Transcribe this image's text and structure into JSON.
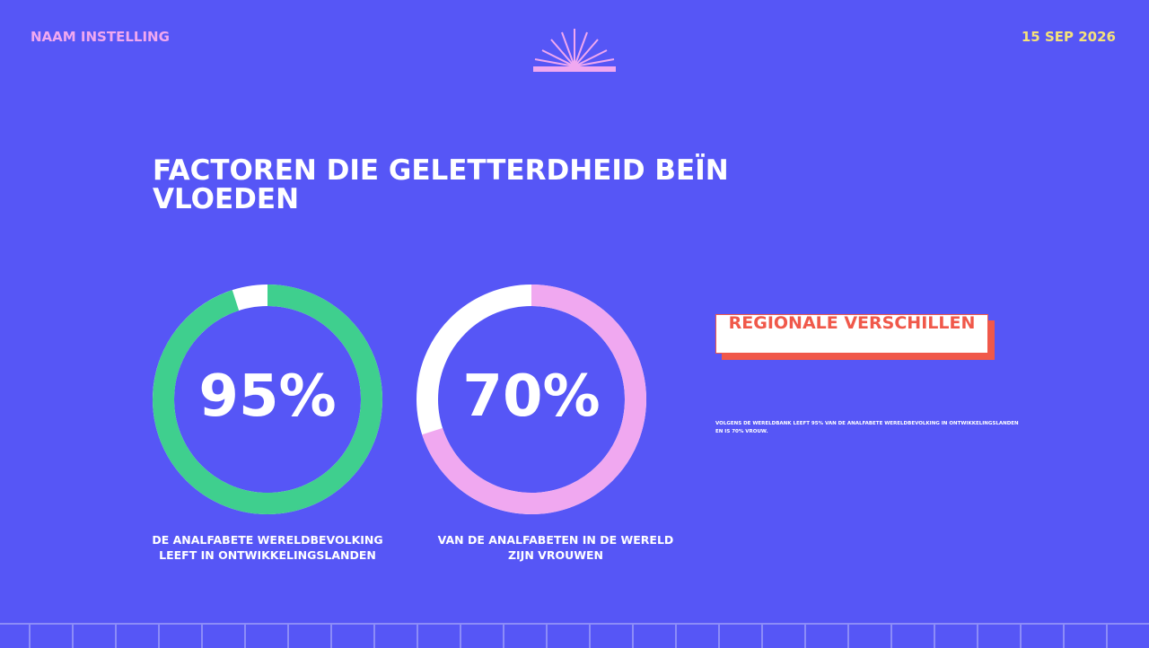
{
  "header": {
    "organization": "NAAM INSTELLING",
    "date": "15 SEP 2026",
    "logo_icon": "sunrise-book-icon"
  },
  "title": "FACTOREN DIE GELETTERDHEID BEÏNVLOEDEN",
  "stats": [
    {
      "value": "95%",
      "fraction": 0.95,
      "color": "#3fcf8e",
      "caption_line1": "DE ANALFABETE WERELDBEVOLKING",
      "caption_line2": "LEEFT IN ONTWIKKELINGSLANDEN"
    },
    {
      "value": "70%",
      "fraction": 0.7,
      "color": "#f0a8f0",
      "caption_line1": "VAN DE ANALFABETEN IN DE WERELD",
      "caption_line2": "ZIJN VROUWEN"
    }
  ],
  "sidebar": {
    "heading": "REGIONALE VERSCHILLEN",
    "note": "VOLGENS DE WERELDBANK LEEFT 95% VAN DE ANALFABETE WERELDBEVOLKING IN ONTWIKKELINGSLANDEN EN IS 70% VROUW."
  },
  "colors": {
    "background": "#5656f6",
    "accent_red": "#f0584a",
    "date": "#f5e27a",
    "org": "#f0a8f0"
  }
}
